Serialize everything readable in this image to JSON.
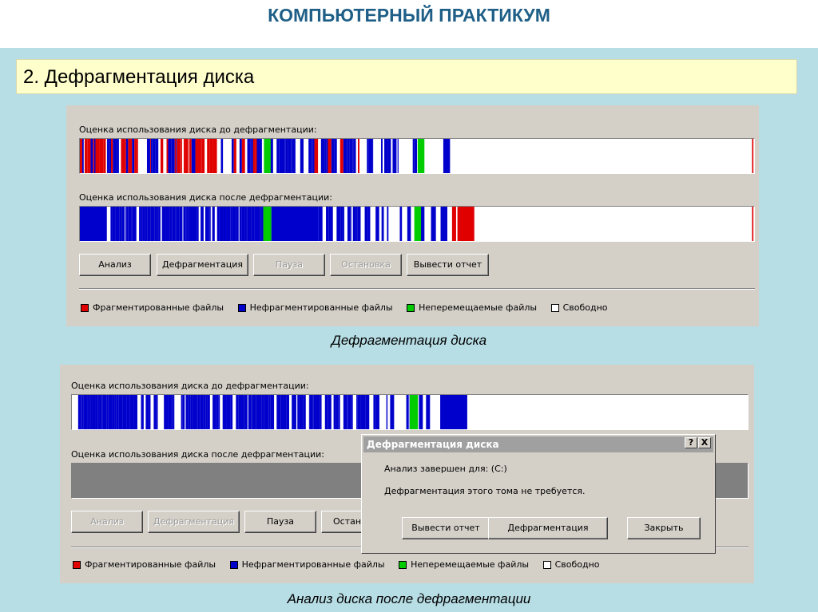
{
  "slide": {
    "title": "КОМПЬЮТЕРНЫЙ ПРАКТИКУМ",
    "section": "2. Дефрагментация диска"
  },
  "colors": {
    "fragmented": "#e00000",
    "contiguous": "#0000cc",
    "unmovable": "#00cc00",
    "free": "#ffffff",
    "slide_bg": "#b7dde5",
    "panel_bg": "#d4d0c8"
  },
  "window1": {
    "before_label": "Оценка использования диска до дефрагментации:",
    "after_label": "Оценка использования диска после дефрагментации:",
    "buttons": {
      "analyze": "Анализ",
      "defrag": "Дефрагментация",
      "pause": "Пауза",
      "stop": "Остановка",
      "report": "Вывести отчет"
    },
    "legend": {
      "fragmented": "Фрагментированные файлы",
      "contiguous": "Нефрагментированные файлы",
      "unmovable": "Неперемещаемые файлы",
      "free": "Свободно"
    },
    "caption": "Дефрагментация диска"
  },
  "window2": {
    "before_label": "Оценка использования диска до дефрагментации:",
    "after_label": "Оценка использования диска после дефрагментации:",
    "buttons": {
      "analyze": "Анализ",
      "defrag": "Дефрагментация",
      "pause": "Пауза",
      "stop": "Остан"
    },
    "legend": {
      "fragmented": "Фрагментированные файлы",
      "contiguous": "Нефрагментированные файлы",
      "unmovable": "Неперемещаемые файлы",
      "free": "Свободно"
    },
    "caption": "Анализ диска после дефрагментации"
  },
  "dialog": {
    "title": "Дефрагментация диска",
    "help_glyph": "?",
    "close_glyph": "X",
    "line1": "Анализ завершен для: (C:)",
    "line2": "Дефрагментация этого тома не требуется.",
    "buttons": {
      "report": "Вывести отчет",
      "defrag": "Дефрагментация",
      "close": "Закрыть"
    }
  }
}
